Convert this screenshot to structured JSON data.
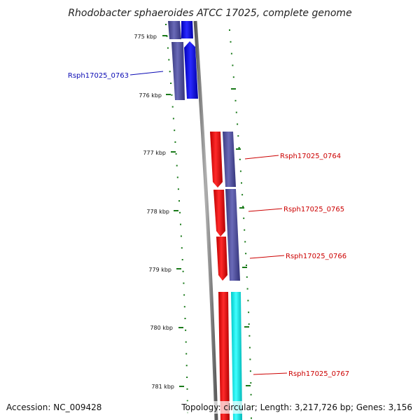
{
  "title": "Rhodobacter sphaeroides ATCC 17025, complete genome",
  "footer": {
    "accession": "Accession: NC_009428",
    "summary": "Topology: circular; Length: 3,217,726 bp; Genes: 3,156"
  },
  "ticks": [
    {
      "label": "775 kbp"
    },
    {
      "label": "776 kbp"
    },
    {
      "label": "777 kbp"
    },
    {
      "label": "778 kbp"
    },
    {
      "label": "779 kbp"
    },
    {
      "label": "780 kbp"
    },
    {
      "label": "781 kbp"
    }
  ],
  "genes": [
    {
      "name": "Rsph17025_0763",
      "color": "#0a0ab4"
    },
    {
      "name": "Rsph17025_0764",
      "color": "#cc0000"
    },
    {
      "name": "Rsph17025_0765",
      "color": "#cc0000"
    },
    {
      "name": "Rsph17025_0766",
      "color": "#cc0000"
    },
    {
      "name": "Rsph17025_0767",
      "color": "#cc0000"
    }
  ],
  "colors": {
    "backbone": "#7a7a7a",
    "tick": "#1a7a1a",
    "forward_cds": "#ff0000",
    "reverse_cds": "#0000ff",
    "orf": "#4b4b96",
    "rna": "#00e5e5"
  }
}
